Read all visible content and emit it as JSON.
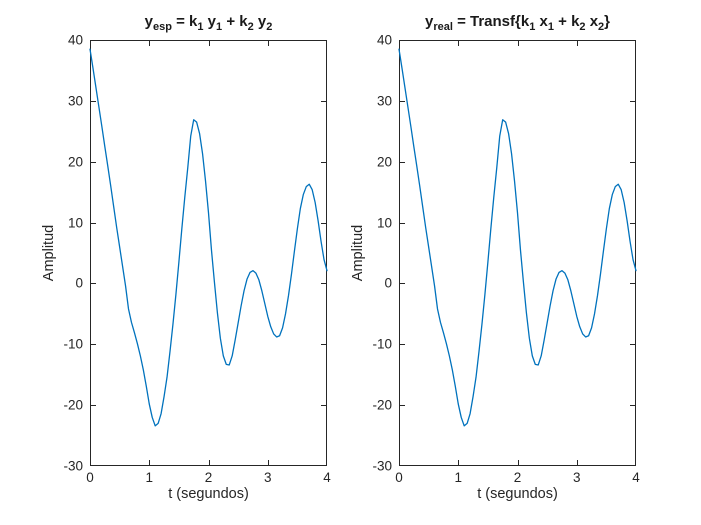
{
  "figure": {
    "background": "#ffffff",
    "line_color": "#0072BD",
    "axis_color": "#262626",
    "tick_label_color": "#262626",
    "title_color": "#1a1a1a"
  },
  "subplots": [
    {
      "id": "expected",
      "title_plain": "y_esp = k_1 y_1 + k_2 y_2",
      "title_segments": [
        {
          "text": "y"
        },
        {
          "text": "esp",
          "sub": true
        },
        {
          "text": " = k"
        },
        {
          "text": "1",
          "sub": true
        },
        {
          "text": " y"
        },
        {
          "text": "1",
          "sub": true
        },
        {
          "text": " + k"
        },
        {
          "text": "2",
          "sub": true
        },
        {
          "text": " y"
        },
        {
          "text": "2",
          "sub": true
        }
      ],
      "xlabel": "t (segundos)",
      "ylabel": "Amplitud",
      "xticks": [
        0,
        1,
        2,
        3,
        4
      ],
      "yticks": [
        40,
        30,
        20,
        10,
        0,
        -10,
        -20,
        -30
      ],
      "xlim": [
        0,
        4
      ],
      "ylim": [
        -30,
        40
      ]
    },
    {
      "id": "real",
      "title_plain": "y_real = Transf{k_1 x_1 + k_2 x_2}",
      "title_segments": [
        {
          "text": "y"
        },
        {
          "text": "real",
          "sub": true
        },
        {
          "text": " = Transf{k"
        },
        {
          "text": "1",
          "sub": true
        },
        {
          "text": " x"
        },
        {
          "text": "1",
          "sub": true
        },
        {
          "text": " + k"
        },
        {
          "text": "2",
          "sub": true
        },
        {
          "text": " x"
        },
        {
          "text": "2",
          "sub": true
        },
        {
          "text": "}"
        }
      ],
      "xlabel": "t (segundos)",
      "ylabel": "Amplitud",
      "xticks": [
        0,
        1,
        2,
        3,
        4
      ],
      "yticks": [
        40,
        30,
        20,
        10,
        0,
        -10,
        -20,
        -30
      ],
      "xlim": [
        0,
        4
      ],
      "ylim": [
        -30,
        40
      ]
    }
  ],
  "chart_data": [
    {
      "type": "line",
      "title": "y_esp = k_1 y_1 + k_2 y_2",
      "xlabel": "t (segundos)",
      "ylabel": "Amplitud",
      "xlim": [
        0,
        4
      ],
      "ylim": [
        -30,
        40
      ],
      "grid": false,
      "legend": null,
      "line_color": "#0072BD",
      "x": [
        0,
        0.05,
        0.1,
        0.15,
        0.2,
        0.25,
        0.3,
        0.35,
        0.4,
        0.45,
        0.5,
        0.55,
        0.6,
        0.65,
        0.7,
        0.75,
        0.8,
        0.85,
        0.9,
        0.95,
        1,
        1.05,
        1.1,
        1.15,
        1.2,
        1.25,
        1.3,
        1.35,
        1.4,
        1.45,
        1.5,
        1.55,
        1.6,
        1.65,
        1.7,
        1.75,
        1.8,
        1.85,
        1.9,
        1.95,
        2,
        2.05,
        2.1,
        2.15,
        2.2,
        2.25,
        2.3,
        2.35,
        2.4,
        2.45,
        2.5,
        2.55,
        2.6,
        2.65,
        2.7,
        2.75,
        2.8,
        2.85,
        2.9,
        2.95,
        3,
        3.05,
        3.1,
        3.15,
        3.2,
        3.25,
        3.3,
        3.35,
        3.4,
        3.45,
        3.5,
        3.55,
        3.6,
        3.65,
        3.7,
        3.75,
        3.8,
        3.85,
        3.9,
        3.95,
        4
      ],
      "y": [
        38.5,
        35.4,
        32.2,
        29,
        25.8,
        22.5,
        19.3,
        16,
        12.6,
        9.2,
        6,
        2.8,
        -0.4,
        -4.2,
        -6.4,
        -8.1,
        -9.9,
        -11.9,
        -14.2,
        -16.9,
        -19.8,
        -22,
        -23.4,
        -23,
        -21.4,
        -18.6,
        -15.4,
        -11.2,
        -6.7,
        -1.8,
        3.5,
        9,
        14.2,
        19,
        24.2,
        26.9,
        26.5,
        24.6,
        21.3,
        16.8,
        11.6,
        5.5,
        0.2,
        -4.8,
        -9,
        -11.9,
        -13.3,
        -13.4,
        -11.9,
        -9.3,
        -6.5,
        -3.7,
        -1.2,
        0.7,
        1.8,
        2.1,
        1.7,
        0.6,
        -1.2,
        -3.3,
        -5.4,
        -7.1,
        -8.3,
        -8.8,
        -8.6,
        -7.3,
        -5,
        -2,
        1.5,
        5.3,
        9,
        12.3,
        14.6,
        15.9,
        16.3,
        15.4,
        13.3,
        10.3,
        6.9,
        3.9,
        2.1
      ]
    },
    {
      "type": "line",
      "title": "y_real = Transf{k_1 x_1 + k_2 x_2}",
      "xlabel": "t (segundos)",
      "ylabel": "Amplitud",
      "xlim": [
        0,
        4
      ],
      "ylim": [
        -30,
        40
      ],
      "grid": false,
      "legend": null,
      "line_color": "#0072BD",
      "x": [
        0,
        0.05,
        0.1,
        0.15,
        0.2,
        0.25,
        0.3,
        0.35,
        0.4,
        0.45,
        0.5,
        0.55,
        0.6,
        0.65,
        0.7,
        0.75,
        0.8,
        0.85,
        0.9,
        0.95,
        1,
        1.05,
        1.1,
        1.15,
        1.2,
        1.25,
        1.3,
        1.35,
        1.4,
        1.45,
        1.5,
        1.55,
        1.6,
        1.65,
        1.7,
        1.75,
        1.8,
        1.85,
        1.9,
        1.95,
        2,
        2.05,
        2.1,
        2.15,
        2.2,
        2.25,
        2.3,
        2.35,
        2.4,
        2.45,
        2.5,
        2.55,
        2.6,
        2.65,
        2.7,
        2.75,
        2.8,
        2.85,
        2.9,
        2.95,
        3,
        3.05,
        3.1,
        3.15,
        3.2,
        3.25,
        3.3,
        3.35,
        3.4,
        3.45,
        3.5,
        3.55,
        3.6,
        3.65,
        3.7,
        3.75,
        3.8,
        3.85,
        3.9,
        3.95,
        4
      ],
      "y": [
        38.5,
        35.4,
        32.2,
        29,
        25.8,
        22.5,
        19.3,
        16,
        12.6,
        9.2,
        6,
        2.8,
        -0.4,
        -4.2,
        -6.4,
        -8.1,
        -9.9,
        -11.9,
        -14.2,
        -16.9,
        -19.8,
        -22,
        -23.4,
        -23,
        -21.4,
        -18.6,
        -15.4,
        -11.2,
        -6.7,
        -1.8,
        3.5,
        9,
        14.2,
        19,
        24.2,
        26.9,
        26.5,
        24.6,
        21.3,
        16.8,
        11.6,
        5.5,
        0.2,
        -4.8,
        -9,
        -11.9,
        -13.3,
        -13.4,
        -11.9,
        -9.3,
        -6.5,
        -3.7,
        -1.2,
        0.7,
        1.8,
        2.1,
        1.7,
        0.6,
        -1.2,
        -3.3,
        -5.4,
        -7.1,
        -8.3,
        -8.8,
        -8.6,
        -7.3,
        -5,
        -2,
        1.5,
        5.3,
        9,
        12.3,
        14.6,
        15.9,
        16.3,
        15.4,
        13.3,
        10.3,
        6.9,
        3.9,
        2.1
      ]
    }
  ]
}
